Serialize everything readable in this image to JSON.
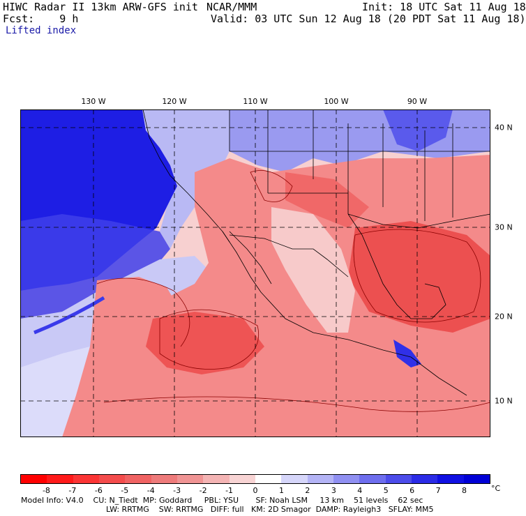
{
  "header": {
    "line1_left": "HIWC Radar II 13km ARW-GFS init",
    "line1_center": "NCAR/MMM",
    "line1_right": "Init: 18 UTC Sat 11 Aug 18",
    "line2_left": "Fcst:    9 h",
    "line2_right": "Valid: 03 UTC Sun 12 Aug 18 (20 PDT Sat 11 Aug 18)",
    "line3_left": "Lifted index"
  },
  "map": {
    "lon_labels": [
      "130 W",
      "120 W",
      "110 W",
      "100 W",
      "90 W"
    ],
    "lat_labels": [
      "40 N",
      "30 N",
      "20 N",
      "10 N"
    ],
    "ocean_color": "#ffffff",
    "stable_color": "#1f1fe0",
    "unstable_color": "#f04b4b"
  },
  "colorbar": {
    "ticks": [
      "-8",
      "-7",
      "-6",
      "-5",
      "-4",
      "-3",
      "-2",
      "-1",
      "0",
      "1",
      "2",
      "3",
      "4",
      "5",
      "6",
      "7",
      "8"
    ],
    "unit": "°C",
    "colors": [
      "#ff0000",
      "#ff1a1a",
      "#fb3535",
      "#f44c4c",
      "#f06363",
      "#ee7b7b",
      "#f09494",
      "#f4b4b4",
      "#f8d4d4",
      "#ffffff",
      "#d6d6fa",
      "#b4b4f6",
      "#9090f2",
      "#6e6eee",
      "#4c4cea",
      "#2b2be6",
      "#1010e2",
      "#0000d6"
    ]
  },
  "footer": {
    "line1": "Model Info: V4.0    CU: N_Tiedt  MP: Goddard     PBL: YSU       SF: Noah LSM     13 km    51 levels    62 sec",
    "line2": "LW: RRTMG    SW: RRTMG   DIFF: full   KM: 2D Smagor  DAMP: Rayleigh3   SFLAY: MM5"
  }
}
